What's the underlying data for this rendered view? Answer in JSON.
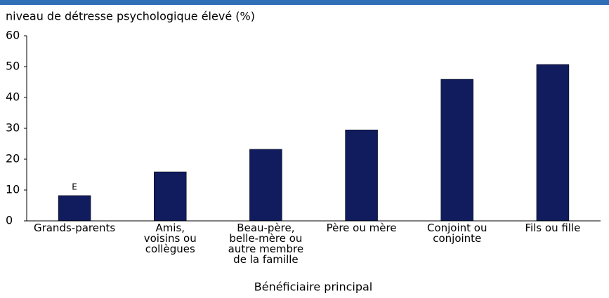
{
  "chart_data": {
    "type": "bar",
    "y_axis_label": "niveau de détresse psychologique élevé (%)",
    "x_axis_label": "Bénéficiaire principal",
    "categories": [
      "Grands-parents",
      "Amis, voisins ou collègues",
      "Beau-père, belle-mère ou autre membre de la famille",
      "Père ou mère",
      "Conjoint ou conjointe",
      "Fils ou fille"
    ],
    "values": [
      8.2,
      15.9,
      23.2,
      29.5,
      45.9,
      50.7
    ],
    "color": "#101c5e",
    "annotations": [
      {
        "text": "E",
        "x": "Grands-parents"
      }
    ],
    "ylim": [
      0,
      60
    ],
    "yticks": [
      0,
      10,
      20,
      30,
      40,
      50,
      60
    ],
    "grid": false
  }
}
